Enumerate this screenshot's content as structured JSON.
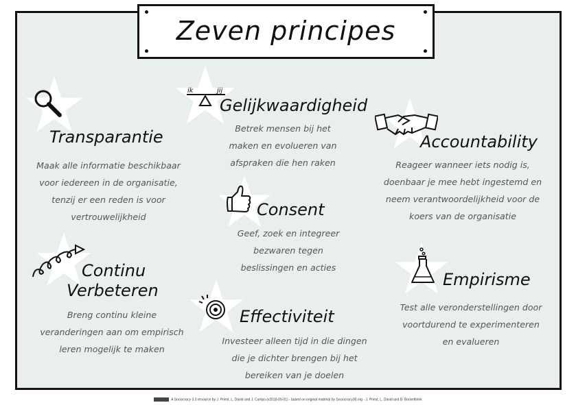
{
  "title": "Zeven principes",
  "principles": [
    {
      "heading": "Transparantie",
      "icon": "magnifier-icon",
      "lines": [
        "Maak alle informatie beschikbaar",
        "voor iedereen in de organisatie,",
        "tenzij er een reden is voor",
        "vertrouwelijkheid"
      ]
    },
    {
      "heading": "Gelijkwaardigheid",
      "icon": "balance-scale-icon",
      "scale_labels": [
        "ik",
        "jij"
      ],
      "lines": [
        "Betrek mensen bij het",
        "maken en evolueren van",
        "afspraken die hen raken"
      ]
    },
    {
      "heading": "Accountability",
      "icon": "handshake-icon",
      "lines": [
        "Reageer wanneer iets nodig is,",
        "doenbaar je mee hebt ingestemd en",
        "neem verantwoordelijkheid voor de",
        "koers van de organisatie"
      ]
    },
    {
      "heading": "Consent",
      "icon": "thumbs-up-icon",
      "lines": [
        "Geef, zoek en integreer",
        "bezwaren tegen",
        "beslissingen en acties"
      ]
    },
    {
      "heading_lines": [
        "Continu",
        "Verbeteren"
      ],
      "icon": "spiral-arrow-icon",
      "lines": [
        "Breng continu kleine",
        "veranderingen aan om empirisch",
        "leren mogelijk te maken"
      ]
    },
    {
      "heading": "Effectiviteit",
      "icon": "target-icon",
      "lines": [
        "Investeer alleen tijd in die dingen",
        "die je dichter brengen bij het",
        "bereiken van je doelen"
      ]
    },
    {
      "heading": "Empirisme",
      "icon": "flask-icon",
      "lines": [
        "Test alle veronderstellingen door",
        "voortdurend te experimenteren",
        "en evalueren"
      ]
    }
  ],
  "credit": "A Sociocracy 3.0 resource by J. Priest, L. David and J. Cumps (v2018-09-01) - based on original material by Sociocracy30.org - J. Priest, L. David and B. Bockelbrink"
}
